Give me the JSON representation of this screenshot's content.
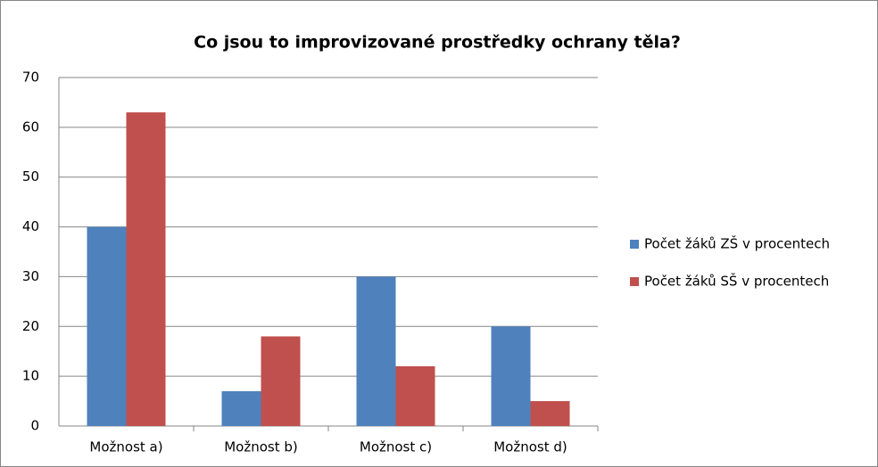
{
  "chart_data": {
    "type": "bar",
    "title": "Co jsou to improvizované prostředky ochrany těla?",
    "categories": [
      "Možnost a)",
      "Možnost b)",
      "Možnost c)",
      "Možnost d)"
    ],
    "series": [
      {
        "name": "Počet žáků ZŠ v procentech",
        "color": "#4f81bd",
        "values": [
          40,
          7,
          30,
          20
        ]
      },
      {
        "name": "Počet žáků SŠ v procentech",
        "color": "#c0504d",
        "values": [
          63,
          18,
          12,
          5
        ]
      }
    ],
    "ylim": [
      0,
      70
    ],
    "yticks": [
      0,
      10,
      20,
      30,
      40,
      50,
      60,
      70
    ],
    "grid": true,
    "legend": "right"
  }
}
